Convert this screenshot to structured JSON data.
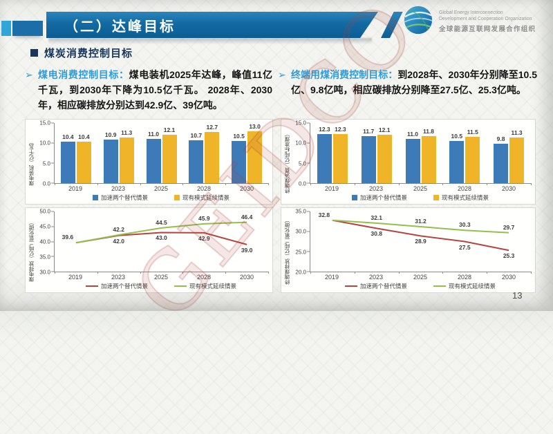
{
  "header": {
    "title": "（二）达峰目标",
    "logo": {
      "name_en_line1": "Global Energy Interconnection",
      "name_en_line2": "Development and Cooperation Organization",
      "name_zh": "全球能源互联网发展合作组织"
    }
  },
  "section_heading": "煤炭消费控制目标",
  "bullets": {
    "left_lead": "煤电消费控制目标：",
    "left_body": "煤电装机2025年达峰，峰值11亿千瓦，到2030年下降为10.5亿千瓦。 2028年、2030年，相应碳排放分别达到42.9亿、39亿吨。",
    "right_lead": "终端用煤消费控制目标：",
    "right_body": "到2028年、2030年分别降至10.5亿、9.8亿吨，相应碳排放分别降至27.5亿、25.3亿吨。"
  },
  "watermark": "GEIDCO",
  "page_number": "13",
  "colors": {
    "banner_blue": "#0d5c94",
    "accent_cyan": "#2ba7dc",
    "heading_navy": "#17365d",
    "lead_blue": "#2f9bd8",
    "bar_blue": "#3d7ab8",
    "bar_yellow": "#f0b429",
    "line_red": "#b5443f",
    "line_green": "#94bf4a"
  },
  "chart_data": [
    {
      "id": "coal-power-capacity",
      "type": "bar",
      "ylabel": "煤电装机（亿千瓦）",
      "categories": [
        "2019",
        "2023",
        "2025",
        "2028",
        "2030"
      ],
      "series": [
        {
          "name": "加速两个替代情景",
          "color": "#3d7ab8",
          "values": [
            10.4,
            10.9,
            11.0,
            10.7,
            10.5
          ]
        },
        {
          "name": "现有模式延续情景",
          "color": "#f0b429",
          "values": [
            10.4,
            11.3,
            12.1,
            12.7,
            13.0
          ]
        }
      ],
      "ylim": [
        0,
        15
      ],
      "yticks": [
        15,
        10,
        5,
        0
      ],
      "grid": false,
      "legend_position": "bottom"
    },
    {
      "id": "end-use-coal-consumption",
      "type": "bar",
      "ylabel": "终端煤消费（亿吨标准煤）",
      "categories": [
        "2019",
        "2023",
        "2025",
        "2028",
        "2030"
      ],
      "series": [
        {
          "name": "加速两个替代情景",
          "color": "#3d7ab8",
          "values": [
            12.3,
            11.7,
            11.0,
            10.5,
            9.8
          ]
        },
        {
          "name": "现有模式延续情景",
          "color": "#f0b429",
          "values": [
            12.3,
            12.1,
            11.8,
            11.5,
            11.3
          ]
        }
      ],
      "ylim": [
        0,
        15
      ],
      "yticks": [
        15,
        10,
        5,
        0
      ],
      "grid": false,
      "legend_position": "bottom"
    },
    {
      "id": "coal-power-emissions",
      "type": "line",
      "ylabel": "煤电排放（亿吨二氧化碳）",
      "categories": [
        "2019",
        "2023",
        "2025",
        "2028",
        "2030"
      ],
      "series": [
        {
          "name": "加速两个替代情景",
          "color": "#b5443f",
          "values": [
            39.6,
            42.0,
            43.0,
            42.9,
            39.0
          ]
        },
        {
          "name": "现有模式延续情景",
          "color": "#94bf4a",
          "values": [
            39.6,
            42.2,
            44.5,
            45.9,
            46.4
          ]
        }
      ],
      "ylim": [
        30,
        50
      ],
      "yticks": [
        50,
        45,
        40,
        35,
        30
      ],
      "grid": false,
      "legend_position": "bottom"
    },
    {
      "id": "end-use-coal-emissions",
      "type": "line",
      "ylabel": "终端煤排放（亿吨二氧化碳）",
      "categories": [
        "2019",
        "2023",
        "2025",
        "2028",
        "2030"
      ],
      "series": [
        {
          "name": "加速两个替代情景",
          "color": "#b5443f",
          "values": [
            32.8,
            30.8,
            28.9,
            27.5,
            25.3
          ]
        },
        {
          "name": "现有模式延续情景",
          "color": "#94bf4a",
          "values": [
            32.8,
            32.1,
            31.2,
            30.3,
            29.7
          ]
        }
      ],
      "ylim": [
        20,
        35
      ],
      "yticks": [
        35,
        30,
        25,
        20
      ],
      "grid": false,
      "legend_position": "bottom"
    }
  ]
}
